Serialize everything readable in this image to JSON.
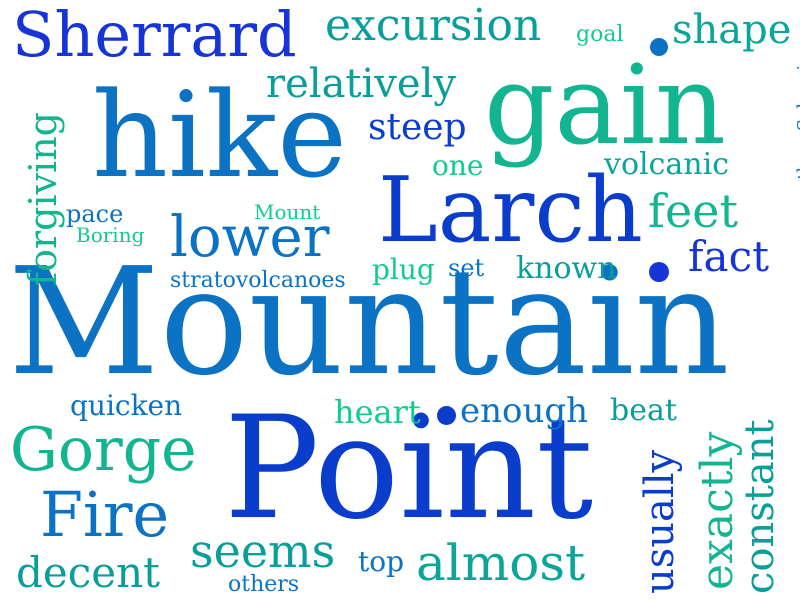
{
  "palette": {
    "royal_blue": "#1634d8",
    "ocean_blue": "#0b72c4",
    "teal": "#0a9e9a",
    "mint": "#12cc8e",
    "dark_blue": "#0b3dcc"
  },
  "words": [
    "Mountain",
    "Point",
    "hike",
    "gain",
    "Larch",
    "Sherrard",
    "excursion",
    "goal",
    "shape",
    "relatively",
    "steep",
    "one",
    "threeSylvania",
    "volcanic",
    "feet",
    "forgiving",
    "pace",
    "Mount",
    "Boring",
    "lower",
    "fact",
    "plug",
    "set",
    "known",
    "stratovolcanoes",
    "quicken",
    "heart",
    "enough",
    "beat",
    "Gorge",
    "Fire",
    "exactly",
    "usually",
    "constant",
    "seems",
    "top",
    "almost",
    "decent",
    "others"
  ]
}
